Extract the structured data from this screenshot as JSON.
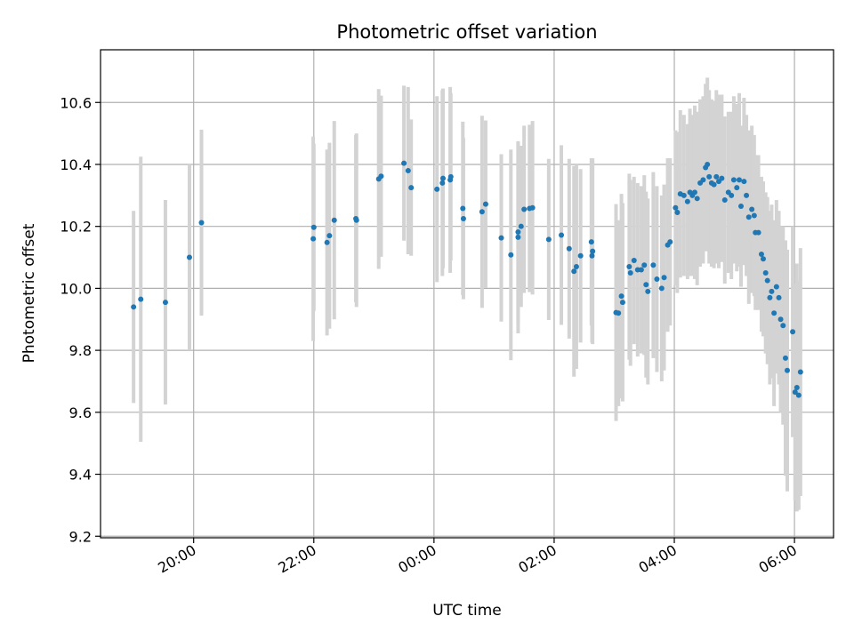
{
  "chart_data": {
    "type": "scatter",
    "title": "Photometric offset variation",
    "xlabel": "UTC time",
    "ylabel": "Photometric offset",
    "x_unit": "UTC hours (day 1 wraps past 24)",
    "xlim": [
      18.45,
      30.65
    ],
    "ylim": [
      9.195,
      10.77
    ],
    "grid": true,
    "x_ticks": [
      {
        "value": 20,
        "label": "20:00"
      },
      {
        "value": 22,
        "label": "22:00"
      },
      {
        "value": 24,
        "label": "00:00"
      },
      {
        "value": 26,
        "label": "02:00"
      },
      {
        "value": 28,
        "label": "04:00"
      },
      {
        "value": 30,
        "label": "06:00"
      }
    ],
    "y_ticks": [
      {
        "value": 9.2,
        "label": "9.2"
      },
      {
        "value": 9.4,
        "label": "9.4"
      },
      {
        "value": 9.6,
        "label": "9.6"
      },
      {
        "value": 9.8,
        "label": "9.8"
      },
      {
        "value": 10.0,
        "label": "10.0"
      },
      {
        "value": 10.2,
        "label": "10.2"
      },
      {
        "value": 10.4,
        "label": "10.4"
      },
      {
        "value": 10.6,
        "label": "10.6"
      }
    ],
    "colors": {
      "point": "#1f77b4",
      "errorbar": "#d3d3d3",
      "grid": "#b0b0b0",
      "axes": "#000000"
    },
    "series": [
      {
        "points": [
          {
            "x": 19.0,
            "y": 9.94,
            "err": 0.31
          },
          {
            "x": 19.12,
            "y": 9.965,
            "err": 0.46
          },
          {
            "x": 19.53,
            "y": 9.955,
            "err": 0.33
          },
          {
            "x": 19.93,
            "y": 10.1,
            "err": 0.3
          },
          {
            "x": 20.13,
            "y": 10.212,
            "err": 0.3
          },
          {
            "x": 21.99,
            "y": 10.16,
            "err": 0.33
          },
          {
            "x": 22.0,
            "y": 10.197,
            "err": 0.27
          },
          {
            "x": 22.22,
            "y": 10.148,
            "err": 0.3
          },
          {
            "x": 22.26,
            "y": 10.17,
            "err": 0.3
          },
          {
            "x": 22.34,
            "y": 10.22,
            "err": 0.32
          },
          {
            "x": 22.7,
            "y": 10.225,
            "err": 0.27
          },
          {
            "x": 22.71,
            "y": 10.22,
            "err": 0.28
          },
          {
            "x": 23.08,
            "y": 10.353,
            "err": 0.29
          },
          {
            "x": 23.12,
            "y": 10.362,
            "err": 0.26
          },
          {
            "x": 23.5,
            "y": 10.404,
            "err": 0.25
          },
          {
            "x": 23.57,
            "y": 10.38,
            "err": 0.27
          },
          {
            "x": 23.62,
            "y": 10.325,
            "err": 0.22
          },
          {
            "x": 24.05,
            "y": 10.32,
            "err": 0.3
          },
          {
            "x": 24.15,
            "y": 10.355,
            "err": 0.29
          },
          {
            "x": 24.14,
            "y": 10.34,
            "err": 0.3
          },
          {
            "x": 24.27,
            "y": 10.35,
            "err": 0.3
          },
          {
            "x": 24.28,
            "y": 10.36,
            "err": 0.27
          },
          {
            "x": 24.48,
            "y": 10.258,
            "err": 0.28
          },
          {
            "x": 24.49,
            "y": 10.225,
            "err": 0.26
          },
          {
            "x": 24.8,
            "y": 10.247,
            "err": 0.31
          },
          {
            "x": 24.86,
            "y": 10.272,
            "err": 0.27
          },
          {
            "x": 25.12,
            "y": 10.163,
            "err": 0.27
          },
          {
            "x": 25.28,
            "y": 10.108,
            "err": 0.34
          },
          {
            "x": 25.4,
            "y": 10.182,
            "err": 0.29
          },
          {
            "x": 25.4,
            "y": 10.165,
            "err": 0.31
          },
          {
            "x": 25.45,
            "y": 10.2,
            "err": 0.26
          },
          {
            "x": 25.5,
            "y": 10.255,
            "err": 0.27
          },
          {
            "x": 25.59,
            "y": 10.258,
            "err": 0.27
          },
          {
            "x": 25.64,
            "y": 10.26,
            "err": 0.28
          },
          {
            "x": 25.91,
            "y": 10.158,
            "err": 0.26
          },
          {
            "x": 26.12,
            "y": 10.172,
            "err": 0.29
          },
          {
            "x": 26.25,
            "y": 10.128,
            "err": 0.29
          },
          {
            "x": 26.33,
            "y": 10.055,
            "err": 0.34
          },
          {
            "x": 26.37,
            "y": 10.07,
            "err": 0.33
          },
          {
            "x": 26.44,
            "y": 10.105,
            "err": 0.28
          },
          {
            "x": 26.62,
            "y": 10.15,
            "err": 0.27
          },
          {
            "x": 26.63,
            "y": 10.105,
            "err": 0.28
          },
          {
            "x": 26.64,
            "y": 10.12,
            "err": 0.3
          },
          {
            "x": 27.03,
            "y": 9.922,
            "err": 0.35
          },
          {
            "x": 27.07,
            "y": 9.92,
            "err": 0.3
          },
          {
            "x": 27.12,
            "y": 9.975,
            "err": 0.33
          },
          {
            "x": 27.14,
            "y": 9.955,
            "err": 0.32
          },
          {
            "x": 27.25,
            "y": 10.07,
            "err": 0.3
          },
          {
            "x": 27.27,
            "y": 10.05,
            "err": 0.3
          },
          {
            "x": 27.33,
            "y": 10.09,
            "err": 0.27
          },
          {
            "x": 27.39,
            "y": 10.06,
            "err": 0.28
          },
          {
            "x": 27.45,
            "y": 10.06,
            "err": 0.27
          },
          {
            "x": 27.5,
            "y": 10.075,
            "err": 0.29
          },
          {
            "x": 27.53,
            "y": 10.012,
            "err": 0.3
          },
          {
            "x": 27.56,
            "y": 9.99,
            "err": 0.3
          },
          {
            "x": 27.65,
            "y": 10.075,
            "err": 0.3
          },
          {
            "x": 27.71,
            "y": 10.03,
            "err": 0.3
          },
          {
            "x": 27.79,
            "y": 10.0,
            "err": 0.3
          },
          {
            "x": 27.83,
            "y": 10.035,
            "err": 0.3
          },
          {
            "x": 27.89,
            "y": 10.14,
            "err": 0.28
          },
          {
            "x": 27.93,
            "y": 10.15,
            "err": 0.27
          },
          {
            "x": 28.02,
            "y": 10.26,
            "err": 0.25
          },
          {
            "x": 28.05,
            "y": 10.245,
            "err": 0.26
          },
          {
            "x": 28.1,
            "y": 10.305,
            "err": 0.27
          },
          {
            "x": 28.16,
            "y": 10.3,
            "err": 0.26
          },
          {
            "x": 28.22,
            "y": 10.28,
            "err": 0.25
          },
          {
            "x": 28.26,
            "y": 10.31,
            "err": 0.27
          },
          {
            "x": 28.3,
            "y": 10.3,
            "err": 0.26
          },
          {
            "x": 28.34,
            "y": 10.31,
            "err": 0.28
          },
          {
            "x": 28.38,
            "y": 10.29,
            "err": 0.28
          },
          {
            "x": 28.43,
            "y": 10.34,
            "err": 0.27
          },
          {
            "x": 28.48,
            "y": 10.35,
            "err": 0.27
          },
          {
            "x": 28.52,
            "y": 10.39,
            "err": 0.27
          },
          {
            "x": 28.55,
            "y": 10.4,
            "err": 0.28
          },
          {
            "x": 28.58,
            "y": 10.36,
            "err": 0.28
          },
          {
            "x": 28.62,
            "y": 10.34,
            "err": 0.27
          },
          {
            "x": 28.66,
            "y": 10.335,
            "err": 0.27
          },
          {
            "x": 28.7,
            "y": 10.36,
            "err": 0.28
          },
          {
            "x": 28.74,
            "y": 10.345,
            "err": 0.28
          },
          {
            "x": 28.79,
            "y": 10.355,
            "err": 0.27
          },
          {
            "x": 28.84,
            "y": 10.285,
            "err": 0.27
          },
          {
            "x": 28.9,
            "y": 10.31,
            "err": 0.26
          },
          {
            "x": 28.95,
            "y": 10.3,
            "err": 0.27
          },
          {
            "x": 28.99,
            "y": 10.35,
            "err": 0.27
          },
          {
            "x": 29.04,
            "y": 10.325,
            "err": 0.27
          },
          {
            "x": 29.08,
            "y": 10.35,
            "err": 0.28
          },
          {
            "x": 29.11,
            "y": 10.265,
            "err": 0.26
          },
          {
            "x": 29.16,
            "y": 10.345,
            "err": 0.27
          },
          {
            "x": 29.2,
            "y": 10.3,
            "err": 0.26
          },
          {
            "x": 29.24,
            "y": 10.23,
            "err": 0.28
          },
          {
            "x": 29.29,
            "y": 10.255,
            "err": 0.27
          },
          {
            "x": 29.33,
            "y": 10.235,
            "err": 0.26
          },
          {
            "x": 29.35,
            "y": 10.18,
            "err": 0.25
          },
          {
            "x": 29.4,
            "y": 10.18,
            "err": 0.25
          },
          {
            "x": 29.45,
            "y": 10.11,
            "err": 0.25
          },
          {
            "x": 29.48,
            "y": 10.095,
            "err": 0.25
          },
          {
            "x": 29.52,
            "y": 10.05,
            "err": 0.26
          },
          {
            "x": 29.55,
            "y": 10.025,
            "err": 0.27
          },
          {
            "x": 29.59,
            "y": 9.97,
            "err": 0.28
          },
          {
            "x": 29.62,
            "y": 9.99,
            "err": 0.28
          },
          {
            "x": 29.66,
            "y": 9.92,
            "err": 0.3
          },
          {
            "x": 29.7,
            "y": 10.005,
            "err": 0.28
          },
          {
            "x": 29.74,
            "y": 9.97,
            "err": 0.28
          },
          {
            "x": 29.77,
            "y": 9.9,
            "err": 0.3
          },
          {
            "x": 29.81,
            "y": 9.88,
            "err": 0.32
          },
          {
            "x": 29.85,
            "y": 9.775,
            "err": 0.38
          },
          {
            "x": 29.88,
            "y": 9.735,
            "err": 0.39
          },
          {
            "x": 29.97,
            "y": 9.86,
            "err": 0.34
          },
          {
            "x": 30.01,
            "y": 9.665,
            "err": 0.35
          },
          {
            "x": 30.04,
            "y": 9.68,
            "err": 0.4
          },
          {
            "x": 30.07,
            "y": 9.655,
            "err": 0.37
          },
          {
            "x": 30.1,
            "y": 9.73,
            "err": 0.4
          }
        ]
      }
    ]
  }
}
